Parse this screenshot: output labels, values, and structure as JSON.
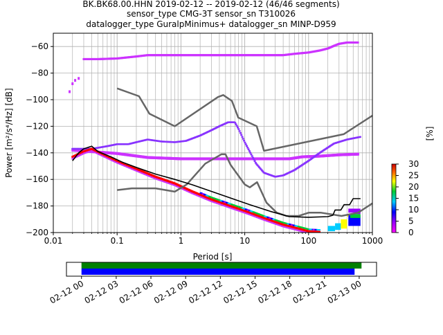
{
  "chart_data": {
    "type": "heatmap",
    "title_lines": [
      "BK.BK68.00.HHN   2019-02-12 -- 2019-02-12  (46/46 segments)",
      "sensor_type CMG-3T sensor_sn T310026",
      "datalogger_type GuralpMinimus+ datalogger_sn MINP-D959"
    ],
    "xlabel": "Period [s]",
    "ylabel": "Power [m²/s⁴/Hz] [dB]",
    "xscale": "log",
    "xlim": [
      0.01,
      1000
    ],
    "ylim": [
      -200,
      -50
    ],
    "x_ticks": [
      {
        "value": 0.01,
        "label": "0.01"
      },
      {
        "value": 0.1,
        "label": "0.1"
      },
      {
        "value": 1,
        "label": "1"
      },
      {
        "value": 10,
        "label": "10"
      },
      {
        "value": 100,
        "label": "100"
      },
      {
        "value": 1000,
        "label": "1000"
      }
    ],
    "y_ticks": [
      {
        "value": -60,
        "label": "−60"
      },
      {
        "value": -80,
        "label": "−80"
      },
      {
        "value": -100,
        "label": "−100"
      },
      {
        "value": -120,
        "label": "−120"
      },
      {
        "value": -140,
        "label": "−140"
      },
      {
        "value": -160,
        "label": "−160"
      },
      {
        "value": -180,
        "label": "−180"
      },
      {
        "value": -200,
        "label": "−200"
      }
    ],
    "grid": true,
    "colorbar": {
      "label": "[%]",
      "range": [
        0,
        30
      ],
      "ticks": [
        {
          "value": 0,
          "label": "0"
        },
        {
          "value": 5,
          "label": "5"
        },
        {
          "value": 10,
          "label": "10"
        },
        {
          "value": 15,
          "label": "15"
        },
        {
          "value": 20,
          "label": "20"
        },
        {
          "value": 25,
          "label": "25"
        },
        {
          "value": 30,
          "label": "30"
        }
      ]
    },
    "noise_model_high": [
      [
        0.1,
        -91.5
      ],
      [
        0.22,
        -97.4
      ],
      [
        0.32,
        -110.5
      ],
      [
        0.8,
        -120
      ],
      [
        3.8,
        -98
      ],
      [
        4.6,
        -96.5
      ],
      [
        6.3,
        -101
      ],
      [
        7.9,
        -113.5
      ],
      [
        15.4,
        -120
      ],
      [
        20,
        -138.5
      ],
      [
        354.8,
        -126
      ],
      [
        1000,
        -112
      ]
    ],
    "noise_model_low": [
      [
        0.1,
        -168
      ],
      [
        0.17,
        -166.7
      ],
      [
        0.4,
        -166.7
      ],
      [
        0.8,
        -169.2
      ],
      [
        1.24,
        -163.7
      ],
      [
        2.4,
        -148.1
      ],
      [
        4.3,
        -141.1
      ],
      [
        5,
        -141.1
      ],
      [
        6,
        -149
      ],
      [
        10,
        -163.8
      ],
      [
        12,
        -166
      ],
      [
        15.6,
        -162.1
      ],
      [
        21.9,
        -177.5
      ],
      [
        31.6,
        -185
      ],
      [
        45,
        -187.5
      ],
      [
        70,
        -187.5
      ],
      [
        101,
        -185
      ],
      [
        154,
        -185
      ],
      [
        328,
        -187.5
      ],
      [
        600,
        -185
      ],
      [
        1000,
        -178
      ]
    ],
    "mode_line": [
      [
        0.02,
        -146
      ],
      [
        0.025,
        -140
      ],
      [
        0.03,
        -137
      ],
      [
        0.04,
        -135
      ],
      [
        0.05,
        -139
      ],
      [
        0.08,
        -143
      ],
      [
        0.12,
        -147
      ],
      [
        0.2,
        -151
      ],
      [
        0.4,
        -156
      ],
      [
        0.8,
        -160
      ],
      [
        1.5,
        -164
      ],
      [
        3,
        -169
      ],
      [
        6,
        -174
      ],
      [
        12,
        -179
      ],
      [
        25,
        -184
      ],
      [
        50,
        -188
      ],
      [
        100,
        -188.5
      ],
      [
        200,
        -188
      ],
      [
        240,
        -187
      ],
      [
        260,
        -183
      ],
      [
        320,
        -183
      ],
      [
        360,
        -179
      ],
      [
        440,
        -179
      ],
      [
        500,
        -174.5
      ],
      [
        650,
        -174.5
      ]
    ],
    "hist_upper_arc": [
      [
        0.03,
        -69.5
      ],
      [
        0.05,
        -69.5
      ],
      [
        0.1,
        -69
      ],
      [
        0.2,
        -67.5
      ],
      [
        0.3,
        -66.5
      ],
      [
        1,
        -66.5
      ],
      [
        10,
        -66.5
      ],
      [
        40,
        -66.5
      ],
      [
        60,
        -65.5
      ],
      [
        100,
        -64.5
      ],
      [
        150,
        -63
      ],
      [
        200,
        -61.5
      ],
      [
        250,
        -59.5
      ],
      [
        300,
        -58
      ],
      [
        400,
        -57
      ],
      [
        600,
        -57
      ]
    ],
    "hist_band_140": [
      [
        0.02,
        -138
      ],
      [
        0.1,
        -140.5
      ],
      [
        0.3,
        -143.5
      ],
      [
        1,
        -144.5
      ],
      [
        5,
        -144.5
      ],
      [
        20,
        -144.5
      ],
      [
        50,
        -144.5
      ],
      [
        80,
        -143
      ],
      [
        150,
        -142.5
      ],
      [
        300,
        -141.5
      ],
      [
        600,
        -141
      ]
    ],
    "hist_mid_curve": [
      [
        0.02,
        -137
      ],
      [
        0.04,
        -137
      ],
      [
        0.07,
        -135
      ],
      [
        0.1,
        -133.5
      ],
      [
        0.15,
        -133.5
      ],
      [
        0.2,
        -132
      ],
      [
        0.3,
        -130
      ],
      [
        0.5,
        -131.5
      ],
      [
        0.8,
        -132
      ],
      [
        1.2,
        -131
      ],
      [
        2,
        -127
      ],
      [
        3,
        -123
      ],
      [
        4,
        -120
      ],
      [
        5.5,
        -117
      ],
      [
        7,
        -117
      ],
      [
        8,
        -122
      ],
      [
        10,
        -132
      ],
      [
        15,
        -148
      ],
      [
        20,
        -155
      ],
      [
        30,
        -158
      ],
      [
        40,
        -157
      ],
      [
        60,
        -153
      ],
      [
        100,
        -146
      ],
      [
        150,
        -140
      ],
      [
        250,
        -133
      ],
      [
        400,
        -130
      ],
      [
        650,
        -128
      ]
    ],
    "hist_lower_curve": [
      [
        0.02,
        -143
      ],
      [
        0.03,
        -139
      ],
      [
        0.04,
        -137
      ],
      [
        0.06,
        -141
      ],
      [
        0.1,
        -146
      ],
      [
        0.2,
        -152
      ],
      [
        0.4,
        -158
      ],
      [
        0.8,
        -163
      ],
      [
        1.5,
        -169
      ],
      [
        3,
        -175
      ],
      [
        6,
        -180
      ],
      [
        12,
        -185
      ],
      [
        20,
        -189
      ],
      [
        40,
        -194
      ],
      [
        70,
        -197
      ],
      [
        100,
        -199
      ],
      [
        150,
        -199.5
      ]
    ],
    "hist_early_points": [
      [
        0.018,
        -94
      ],
      [
        0.02,
        -88
      ],
      [
        0.022,
        -85.5
      ],
      [
        0.025,
        -84
      ]
    ],
    "hist_dense_blocks": [
      {
        "x0": 200,
        "x1": 260,
        "y0": -199,
        "y1": -195,
        "value": 12
      },
      {
        "x0": 260,
        "x1": 320,
        "y0": -198,
        "y1": -193,
        "value": 16
      },
      {
        "x0": 320,
        "x1": 400,
        "y0": -197,
        "y1": -190,
        "value": 22
      },
      {
        "x0": 420,
        "x1": 650,
        "y0": -195,
        "y1": -187,
        "value": 9
      },
      {
        "x0": 450,
        "x1": 650,
        "y0": -189,
        "y1": -186,
        "value": 18
      },
      {
        "x0": 520,
        "x1": 650,
        "y0": -186,
        "y1": -184,
        "value": 4
      },
      {
        "x0": 420,
        "x1": 650,
        "y0": -185,
        "y1": -182,
        "value": 6
      },
      {
        "x0": 400,
        "x1": 420,
        "y0": -188,
        "y1": -186,
        "value": 25
      }
    ],
    "colors": {
      "noise_model": "#666666",
      "mode_line": "#000000",
      "low_density": "#cc33ff",
      "mid_density": "#ff33cc",
      "red_points": "#ff0000"
    },
    "timeline": {
      "x_ticks": [
        "02-12 00",
        "02-12 03",
        "02-12 06",
        "02-12 09",
        "02-12 12",
        "02-12 15",
        "02-12 18",
        "02-12 21",
        "02-13 00"
      ],
      "coverage": [
        {
          "name": "",
          "start_hour": 0,
          "end_hour": 24.2,
          "color": "#008000"
        },
        {
          "name": "",
          "start_hour": 0,
          "end_hour": 23.6,
          "color": "#0000ff"
        }
      ],
      "range_hours": [
        -1.3,
        25.5
      ]
    }
  }
}
